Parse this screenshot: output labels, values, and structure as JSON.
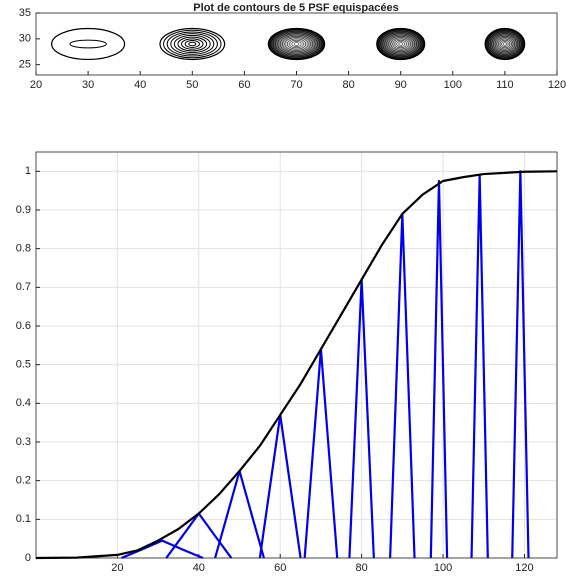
{
  "chart_data": [
    {
      "type": "contour",
      "title": "Plot de contours de 5 PSF equispacées",
      "x": [
        30,
        50,
        70,
        90,
        110
      ],
      "y": [
        29,
        29,
        29,
        29,
        29
      ],
      "xlim": [
        20,
        120
      ],
      "ylim": [
        23,
        35
      ],
      "xticks": [
        20,
        30,
        40,
        50,
        60,
        70,
        80,
        90,
        100,
        110,
        120
      ],
      "yticks": [
        25,
        30,
        35
      ],
      "color": "#000000",
      "grid": false
    },
    {
      "type": "line",
      "xlim": [
        0,
        128
      ],
      "ylim": [
        0,
        1.05
      ],
      "xticks": [
        20,
        40,
        60,
        80,
        100,
        120
      ],
      "yticks": [
        0,
        0.1,
        0.2,
        0.3,
        0.4,
        0.5,
        0.6,
        0.7,
        0.8,
        0.9,
        1
      ],
      "grid": true,
      "series": [
        {
          "color": "#0000ee",
          "x": [
            21,
            26,
            31,
            36,
            41
          ],
          "values": [
            0,
            0.022,
            0.045,
            0.022,
            0
          ]
        },
        {
          "color": "#0000ee",
          "x": [
            32,
            36,
            40,
            44,
            48
          ],
          "values": [
            0,
            0.057,
            0.115,
            0.057,
            0
          ]
        },
        {
          "color": "#0000ee",
          "x": [
            44,
            47,
            50,
            53,
            56
          ],
          "values": [
            0,
            0.112,
            0.225,
            0.112,
            0
          ]
        },
        {
          "color": "#0000ee",
          "x": [
            55,
            57.5,
            60,
            62.5,
            65
          ],
          "values": [
            0,
            0.185,
            0.37,
            0.185,
            0
          ]
        },
        {
          "color": "#0000ee",
          "x": [
            66,
            68,
            70,
            72,
            74
          ],
          "values": [
            0,
            0.27,
            0.54,
            0.27,
            0
          ]
        },
        {
          "color": "#0000ee",
          "x": [
            77,
            78.5,
            80,
            81.5,
            83
          ],
          "values": [
            0,
            0.36,
            0.72,
            0.36,
            0
          ]
        },
        {
          "color": "#0000ee",
          "x": [
            87,
            88.5,
            90,
            91.5,
            93
          ],
          "values": [
            0,
            0.445,
            0.89,
            0.445,
            0
          ]
        },
        {
          "color": "#0000ee",
          "x": [
            97,
            98,
            99,
            100,
            101
          ],
          "values": [
            0,
            0.49,
            0.975,
            0.49,
            0
          ]
        },
        {
          "color": "#0000ee",
          "x": [
            107,
            108,
            109,
            110,
            111
          ],
          "values": [
            0,
            0.495,
            0.99,
            0.495,
            0
          ]
        },
        {
          "color": "#0000ee",
          "x": [
            117,
            118,
            119,
            120,
            121
          ],
          "values": [
            0,
            0.5,
            1,
            0.5,
            0
          ]
        },
        {
          "color": "#000000",
          "x": [
            0,
            10,
            20,
            25,
            30,
            35,
            40,
            45,
            50,
            55,
            60,
            65,
            70,
            75,
            80,
            85,
            90,
            95,
            100,
            105,
            110,
            120,
            128
          ],
          "values": [
            0,
            0.001,
            0.008,
            0.02,
            0.045,
            0.075,
            0.115,
            0.165,
            0.225,
            0.29,
            0.37,
            0.45,
            0.54,
            0.63,
            0.72,
            0.81,
            0.89,
            0.94,
            0.975,
            0.985,
            0.993,
            0.999,
            1
          ]
        }
      ]
    }
  ]
}
